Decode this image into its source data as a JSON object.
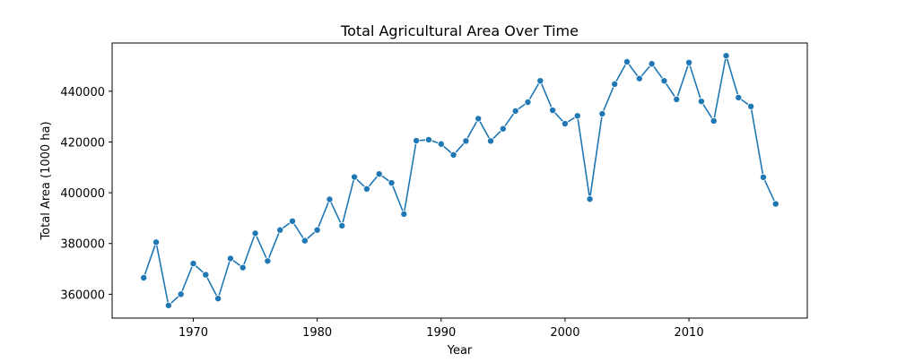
{
  "chart_data": {
    "type": "line",
    "title": "Total Agricultural Area Over Time",
    "xlabel": "Year",
    "ylabel": "Total Area (1000 ha)",
    "xlim": [
      1963.45,
      2019.55
    ],
    "ylim": [
      350600,
      459000
    ],
    "x_ticks": [
      1970,
      1980,
      1990,
      2000,
      2010
    ],
    "x_tick_labels": [
      "1970",
      "1980",
      "1990",
      "2000",
      "2010"
    ],
    "y_ticks": [
      360000,
      380000,
      400000,
      420000,
      440000
    ],
    "y_tick_labels": [
      "360000",
      "380000",
      "400000",
      "420000",
      "440000"
    ],
    "grid": false,
    "colors": {
      "series": "#1f77b4",
      "axes": "#000000"
    },
    "series": [
      {
        "x": [
          1966,
          1967,
          1968,
          1969,
          1970,
          1971,
          1972,
          1973,
          1974,
          1975,
          1976,
          1977,
          1978,
          1979,
          1980,
          1981,
          1982,
          1983,
          1984,
          1985,
          1986,
          1987,
          1988,
          1989,
          1990,
          1991,
          1992,
          1993,
          1994,
          1995,
          1996,
          1997,
          1998,
          1999,
          2000,
          2001,
          2002,
          2003,
          2004,
          2005,
          2006,
          2007,
          2008,
          2009,
          2010,
          2011,
          2012,
          2013,
          2014,
          2015,
          2016,
          2017
        ],
        "y": [
          366500,
          380500,
          355600,
          360000,
          372100,
          367700,
          358300,
          374100,
          370500,
          384000,
          373100,
          385300,
          388800,
          381100,
          385300,
          397400,
          387000,
          406200,
          401500,
          407400,
          403900,
          391600,
          420500,
          420900,
          419200,
          414900,
          420400,
          429200,
          420400,
          425200,
          432200,
          435700,
          444100,
          432500,
          427200,
          430300,
          397500,
          431100,
          442800,
          451600,
          445000,
          450800,
          444100,
          436800,
          451300,
          436000,
          428300,
          454000,
          437500,
          434000,
          406100,
          395600
        ]
      }
    ]
  }
}
